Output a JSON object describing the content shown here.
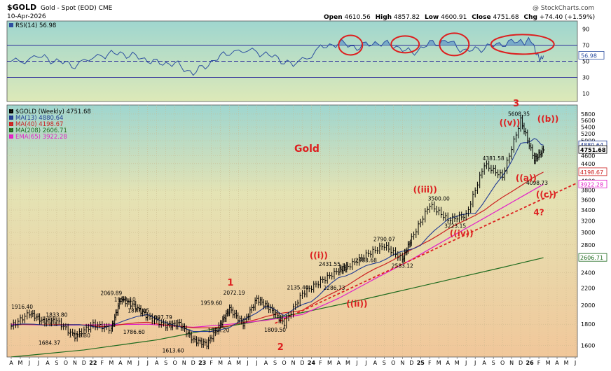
{
  "chart_data": {
    "type": "line",
    "symbol": "$GOLD",
    "title": "Gold - Spot (EOD)",
    "exchange": "CME",
    "date": "10-Apr-2026",
    "watermark": "@ StockCharts.com",
    "ohlc_header": {
      "open_label": "Open",
      "open": "4610.56",
      "high_label": "High",
      "high": "4857.82",
      "low_label": "Low",
      "low": "4600.91",
      "close_label": "Close",
      "close": "4751.68",
      "chg_label": "Chg",
      "chg": "+74.40 (+1.59%)"
    },
    "rsi_panel": {
      "label": "RSI(14)",
      "value": "56.98",
      "value_num": 56.98,
      "ylim": [
        0,
        100
      ],
      "ticks": [
        "90",
        "70",
        "50",
        "30",
        "10"
      ],
      "tick_values": [
        90,
        70,
        50,
        30,
        10
      ],
      "overbought": 70,
      "oversold": 30,
      "midline": 50,
      "highlight_circles": 4
    },
    "legend": [
      {
        "label": "$GOLD (Weekly) 4751.68",
        "color": "#000000"
      },
      {
        "label": "MA(13) 4880.64",
        "color": "#1f3a93"
      },
      {
        "label": "MA(40) 4198.67",
        "color": "#cc2222"
      },
      {
        "label": "MA(208) 2606.71",
        "color": "#1f6b1f"
      },
      {
        "label": "EMA(65) 3922.28",
        "color": "#e21fc8"
      }
    ],
    "price_axis": {
      "scale": "log",
      "ylim": [
        1500,
        6100
      ],
      "ticks": [
        "5800",
        "5600",
        "5400",
        "5200",
        "5000",
        "4800",
        "4600",
        "4400",
        "4200",
        "4000",
        "3800",
        "3600",
        "3400",
        "3200",
        "3000",
        "2800",
        "2600",
        "2400",
        "2200",
        "2000",
        "1800",
        "1600"
      ],
      "tick_values": [
        5800,
        5600,
        5400,
        5200,
        5000,
        4800,
        4600,
        4400,
        4200,
        4000,
        3800,
        3600,
        3400,
        3200,
        3000,
        2800,
        2600,
        2400,
        2200,
        2000,
        1800,
        1600
      ]
    },
    "axis_tags": [
      {
        "label": "4880.64",
        "value": 4880.64,
        "color": "#1f3a93"
      },
      {
        "label": "4751.68",
        "value": 4751.68,
        "color": "#000000"
      },
      {
        "label": "4198.67",
        "value": 4198.67,
        "color": "#cc2222"
      },
      {
        "label": "3922.28",
        "value": 3922.28,
        "color": "#e21fc8"
      },
      {
        "label": "2606.71",
        "value": 2606.71,
        "color": "#1f6b1f"
      }
    ],
    "x_axis": {
      "labels": [
        "A",
        "M",
        "J",
        "J",
        "A",
        "S",
        "O",
        "N",
        "D",
        "22",
        "F",
        "M",
        "A",
        "M",
        "J",
        "J",
        "A",
        "S",
        "O",
        "N",
        "D",
        "23",
        "F",
        "M",
        "A",
        "M",
        "J",
        "J",
        "A",
        "S",
        "O",
        "N",
        "D",
        "24",
        "F",
        "M",
        "A",
        "M",
        "J",
        "J",
        "A",
        "S",
        "O",
        "N",
        "D",
        "25",
        "F",
        "M",
        "A",
        "M",
        "J",
        "J",
        "A",
        "S",
        "O",
        "N",
        "D",
        "26",
        "F",
        "M",
        "A",
        "M",
        "J"
      ],
      "bold_labels": [
        "22",
        "23",
        "24",
        "25",
        "26"
      ]
    },
    "price_series": {
      "x": [
        0,
        2,
        3.5,
        5,
        7,
        9,
        11,
        12,
        13.5,
        15,
        17,
        18.5,
        20,
        21.5,
        23,
        24,
        25.5,
        27,
        28.5,
        30,
        32,
        34,
        36,
        37,
        39,
        41,
        43,
        44,
        46,
        48,
        50,
        52,
        54,
        56,
        57.5,
        58.5
      ],
      "close": [
        1780,
        1916.4,
        1830,
        1833.8,
        1684.37,
        1800,
        1753.3,
        2069.89,
        1998.1,
        1877.05,
        1786.6,
        1807.79,
        1650,
        1613.6,
        1800,
        1959.6,
        1804.2,
        2072.19,
        1960,
        1809.5,
        2135.4,
        2286.73,
        2431.55,
        2483.68,
        2650,
        2790.07,
        2583.12,
        2900,
        3500,
        3223.15,
        3300,
        4381.58,
        4098.73,
        5608.35,
        4500,
        4751.68
      ]
    },
    "ma13": {
      "x": [
        0,
        5,
        10,
        15,
        20,
        24,
        28,
        30,
        33,
        36,
        39,
        42,
        45,
        48,
        51,
        54,
        56,
        57.5,
        58.5
      ],
      "values": [
        1790,
        1800,
        1770,
        1900,
        1720,
        1760,
        1990,
        1900,
        2050,
        2330,
        2480,
        2640,
        2800,
        3250,
        3340,
        4100,
        4900,
        5050,
        4880.64
      ]
    },
    "ma40": {
      "x": [
        0,
        5,
        10,
        15,
        20,
        24,
        28,
        32,
        36,
        40,
        44,
        48,
        52,
        56,
        58.5
      ],
      "values": [
        1790,
        1800,
        1780,
        1820,
        1760,
        1780,
        1880,
        1950,
        2180,
        2450,
        2720,
        3050,
        3400,
        3900,
        4198.67
      ]
    },
    "ema65": {
      "x": [
        0,
        5,
        10,
        15,
        20,
        24,
        28,
        32,
        36,
        40,
        44,
        48,
        52,
        56,
        58.5
      ],
      "values": [
        1800,
        1790,
        1795,
        1800,
        1770,
        1800,
        1840,
        1900,
        2080,
        2320,
        2580,
        2900,
        3250,
        3650,
        3922.28
      ]
    },
    "ma208": {
      "x": [
        0,
        8,
        16,
        22,
        30,
        38,
        46,
        54,
        58.5
      ],
      "values": [
        1500,
        1560,
        1650,
        1750,
        1880,
        2050,
        2250,
        2470,
        2606.71
      ]
    },
    "rsi_series": {
      "x": [
        0,
        3,
        5,
        7,
        10,
        12,
        14,
        16,
        18,
        20,
        22,
        24,
        27,
        29,
        31,
        34,
        36,
        38,
        40,
        42,
        44,
        46,
        48,
        50,
        52,
        54,
        56,
        57.3,
        58,
        58.5
      ],
      "values": [
        48,
        56,
        50,
        45,
        58,
        60,
        55,
        48,
        47,
        35,
        49,
        62,
        62,
        55,
        45,
        66,
        73,
        67,
        73,
        70,
        60,
        72,
        75,
        62,
        67,
        72,
        75,
        74,
        52,
        57
      ]
    },
    "trendline": {
      "x": [
        29,
        62.5
      ],
      "values": [
        1809.5,
        3980
      ]
    },
    "price_labels": [
      {
        "label": "1916.40",
        "x": 1.2,
        "y": 1916.4,
        "pos": "above"
      },
      {
        "label": "1833.80",
        "x": 5,
        "y": 1833.8,
        "pos": "above"
      },
      {
        "label": "1684.37",
        "x": 4.2,
        "y": 1684.37,
        "pos": "below"
      },
      {
        "label": "1753.30",
        "x": 7.5,
        "y": 1753.3,
        "pos": "below"
      },
      {
        "label": "2069.89",
        "x": 11,
        "y": 2069.89,
        "pos": "above"
      },
      {
        "label": "1998.10",
        "x": 12.5,
        "y": 1998.1,
        "pos": "above"
      },
      {
        "label": "1877.05",
        "x": 14,
        "y": 1877.05,
        "pos": "above"
      },
      {
        "label": "1786.60",
        "x": 13.5,
        "y": 1786.6,
        "pos": "below"
      },
      {
        "label": "1807.79",
        "x": 16.5,
        "y": 1807.79,
        "pos": "above"
      },
      {
        "label": "1613.60",
        "x": 17.8,
        "y": 1613.6,
        "pos": "below"
      },
      {
        "label": "1959.60",
        "x": 22,
        "y": 1959.6,
        "pos": "above"
      },
      {
        "label": "1804.20",
        "x": 22.8,
        "y": 1804.2,
        "pos": "below"
      },
      {
        "label": "2072.19",
        "x": 24.5,
        "y": 2072.19,
        "pos": "above"
      },
      {
        "label": "1809.50",
        "x": 29,
        "y": 1809.5,
        "pos": "below"
      },
      {
        "label": "2135.40",
        "x": 31.5,
        "y": 2135.4,
        "pos": "above"
      },
      {
        "label": "2286.73",
        "x": 35.5,
        "y": 2286.73,
        "pos": "below"
      },
      {
        "label": "2431.55",
        "x": 35,
        "y": 2431.55,
        "pos": "above"
      },
      {
        "label": "2483.68",
        "x": 39,
        "y": 2483.68,
        "pos": "above"
      },
      {
        "label": "2790.07",
        "x": 41,
        "y": 2790.07,
        "pos": "above"
      },
      {
        "label": "2583.12",
        "x": 43,
        "y": 2583.12,
        "pos": "below"
      },
      {
        "label": "3500.00",
        "x": 47,
        "y": 3500,
        "pos": "above"
      },
      {
        "label": "3223.15",
        "x": 48.8,
        "y": 3223.15,
        "pos": "below"
      },
      {
        "label": "4381.58",
        "x": 53,
        "y": 4381.58,
        "pos": "above"
      },
      {
        "label": "4098.73",
        "x": 57.8,
        "y": 4098.73,
        "pos": "below"
      },
      {
        "label": "5608.35",
        "x": 55.8,
        "y": 5608.35,
        "pos": "above"
      }
    ],
    "annotations": [
      {
        "text": "Gold",
        "x": 32.5,
        "y": 4700,
        "size": 14
      },
      {
        "text": "1",
        "x": 24.1,
        "y": 2230,
        "size": 13
      },
      {
        "text": "2",
        "x": 29.6,
        "y": 1560,
        "size": 13
      },
      {
        "text": "((i))",
        "x": 33.8,
        "y": 2600,
        "size": 12
      },
      {
        "text": "((ii))",
        "x": 38,
        "y": 1985,
        "size": 12
      },
      {
        "text": "((iii))",
        "x": 45.5,
        "y": 3750,
        "size": 12
      },
      {
        "text": "((iv))",
        "x": 49.5,
        "y": 2940,
        "size": 12
      },
      {
        "text": "3",
        "x": 55.5,
        "y": 6050,
        "size": 13
      },
      {
        "text": "((v))",
        "x": 54.8,
        "y": 5440,
        "size": 12
      },
      {
        "text": "((a))",
        "x": 56.6,
        "y": 4000,
        "size": 12
      },
      {
        "text": "((b))",
        "x": 59,
        "y": 5560,
        "size": 12
      },
      {
        "text": "((c))",
        "x": 58.8,
        "y": 3650,
        "size": 12
      },
      {
        "text": "4?",
        "x": 58,
        "y": 3300,
        "size": 12
      }
    ],
    "colors": {
      "price": "#000000",
      "ma13": "#1f3a93",
      "ma40": "#cc2222",
      "ma208": "#1f6b1f",
      "ema65": "#e21fc8",
      "rsi": "#2d4fa0",
      "rsi_fill": "#6ea3c8",
      "annotation": "#dd1f1f",
      "trendline": "#dd1f1f"
    }
  }
}
